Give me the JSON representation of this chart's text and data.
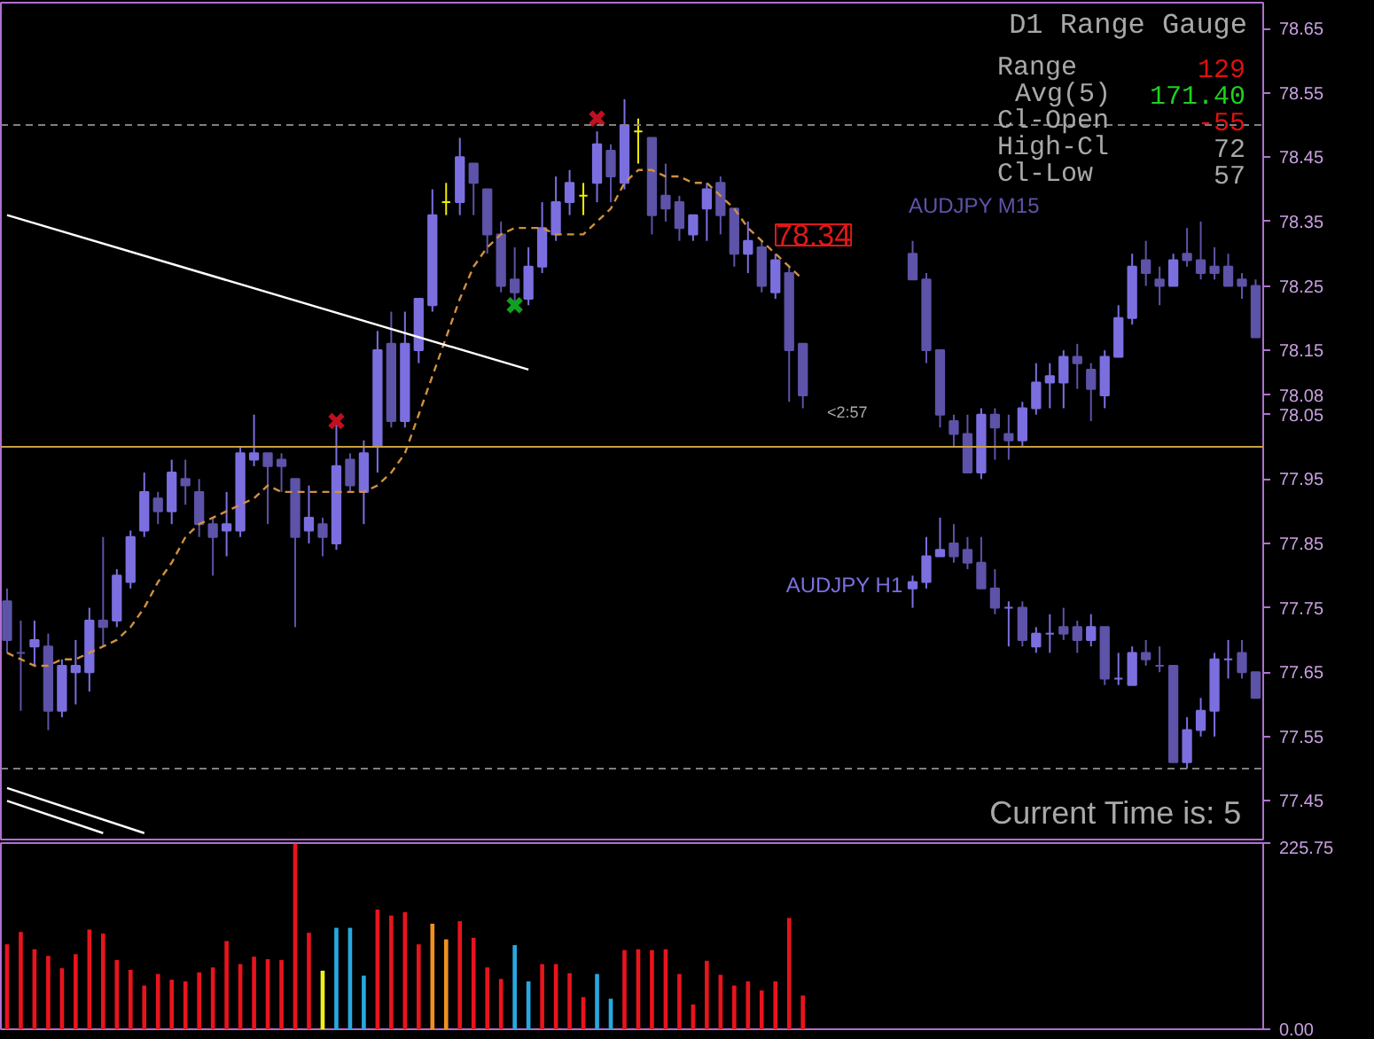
{
  "chart_data": [
    {
      "type": "candlestick",
      "ylim": [
        77.39,
        78.69
      ],
      "tick_labels": "y",
      "yticks": [
        78.65,
        78.55,
        78.45,
        78.35,
        78.25,
        78.15,
        78.08,
        78.05,
        77.95,
        77.85,
        77.75,
        77.65,
        77.55,
        77.45
      ],
      "categories": [
        null,
        null,
        null,
        null,
        null,
        null,
        null,
        null,
        null,
        null,
        null,
        null,
        null,
        null,
        null,
        null,
        null,
        null,
        null,
        null,
        null,
        null,
        null,
        null,
        null,
        null,
        null,
        null,
        null,
        null,
        null,
        null,
        null,
        null,
        null,
        null,
        null,
        null,
        null,
        null,
        null,
        null,
        null,
        null,
        null,
        null,
        null,
        null,
        null,
        null,
        null,
        null,
        null,
        null,
        null,
        null,
        null,
        null,
        null,
        null,
        null,
        null,
        null,
        null,
        null,
        null,
        null,
        null,
        null,
        null,
        null,
        null,
        null,
        null,
        null,
        null,
        null,
        null,
        null,
        null,
        null,
        null,
        null,
        null,
        null,
        null,
        null,
        null,
        null,
        null,
        null,
        null
      ],
      "ohlc": [
        [
          77.76,
          77.78,
          77.68,
          77.7
        ],
        [
          77.68,
          77.73,
          77.59,
          77.68
        ],
        [
          77.69,
          77.73,
          77.66,
          77.7
        ],
        [
          77.69,
          77.71,
          77.56,
          77.59
        ],
        [
          77.59,
          77.67,
          77.58,
          77.66
        ],
        [
          77.65,
          77.7,
          77.6,
          77.66
        ],
        [
          77.65,
          77.75,
          77.62,
          77.73
        ],
        [
          77.73,
          77.86,
          77.69,
          77.72
        ],
        [
          77.73,
          77.81,
          77.72,
          77.8
        ],
        [
          77.79,
          77.87,
          77.78,
          77.86
        ],
        [
          77.87,
          77.96,
          77.86,
          77.93
        ],
        [
          77.92,
          77.93,
          77.88,
          77.9
        ],
        [
          77.9,
          77.98,
          77.88,
          77.96
        ],
        [
          77.95,
          77.98,
          77.91,
          77.94
        ],
        [
          77.93,
          77.95,
          77.86,
          77.88
        ],
        [
          77.88,
          77.89,
          77.8,
          77.86
        ],
        [
          77.87,
          77.93,
          77.83,
          77.88
        ],
        [
          77.87,
          78.0,
          77.86,
          77.99
        ],
        [
          77.98,
          78.05,
          77.97,
          77.99
        ],
        [
          77.99,
          77.99,
          77.88,
          77.97
        ],
        [
          77.98,
          77.99,
          77.93,
          77.97
        ],
        [
          77.95,
          77.95,
          77.72,
          77.86
        ],
        [
          77.87,
          77.94,
          77.85,
          77.89
        ],
        [
          77.88,
          77.89,
          77.83,
          77.86
        ],
        [
          77.85,
          78.04,
          77.84,
          77.97
        ],
        [
          77.98,
          77.99,
          77.93,
          77.94
        ],
        [
          77.93,
          78.01,
          77.88,
          77.99
        ],
        [
          78.0,
          78.18,
          77.96,
          78.15
        ],
        [
          78.16,
          78.21,
          78.03,
          78.04
        ],
        [
          78.04,
          78.21,
          78.03,
          78.16
        ],
        [
          78.15,
          78.23,
          78.13,
          78.23
        ],
        [
          78.22,
          78.4,
          78.21,
          78.36
        ],
        [
          78.38,
          78.41,
          78.36,
          78.38
        ],
        [
          78.38,
          78.48,
          78.36,
          78.45
        ],
        [
          78.44,
          78.44,
          78.36,
          78.41
        ],
        [
          78.4,
          78.4,
          78.3,
          78.33
        ],
        [
          78.33,
          78.35,
          78.24,
          78.25
        ],
        [
          78.26,
          78.31,
          78.22,
          78.24
        ],
        [
          78.23,
          78.31,
          78.22,
          78.28
        ],
        [
          78.28,
          78.38,
          78.27,
          78.34
        ],
        [
          78.33,
          78.42,
          78.32,
          78.38
        ],
        [
          78.38,
          78.43,
          78.36,
          78.41
        ],
        [
          78.39,
          78.41,
          78.36,
          78.39
        ],
        [
          78.41,
          78.49,
          78.38,
          78.47
        ],
        [
          78.46,
          78.47,
          78.38,
          78.42
        ],
        [
          78.41,
          78.54,
          78.4,
          78.5
        ],
        [
          78.49,
          78.51,
          78.44,
          78.49
        ],
        [
          78.48,
          78.48,
          78.33,
          78.36
        ],
        [
          78.39,
          78.44,
          78.35,
          78.37
        ],
        [
          78.38,
          78.39,
          78.32,
          78.34
        ],
        [
          78.33,
          78.36,
          78.32,
          78.36
        ],
        [
          78.37,
          78.41,
          78.32,
          78.4
        ],
        [
          78.41,
          78.42,
          78.33,
          78.36
        ],
        [
          78.37,
          78.37,
          78.28,
          78.3
        ],
        [
          78.3,
          78.35,
          78.27,
          78.32
        ],
        [
          78.31,
          78.32,
          78.24,
          78.25
        ],
        [
          78.24,
          78.3,
          78.23,
          78.29
        ],
        [
          78.27,
          78.28,
          78.07,
          78.15
        ],
        [
          78.16,
          78.16,
          78.06,
          78.08
        ],
        null,
        null,
        null,
        null,
        null,
        null,
        null,
        null,
        null,
        null,
        null,
        null,
        null,
        null,
        null,
        null,
        null,
        null,
        null,
        null,
        null,
        null,
        null,
        null,
        null,
        null,
        null,
        null,
        null,
        null,
        null,
        null,
        null
      ],
      "colors": [
        "#5d53a8",
        "#5d53a8",
        "#7b6fe0",
        "#5d53a8",
        "#7b6fe0",
        "#7b6fe0",
        "#7b6fe0",
        "#5d53a8",
        "#7b6fe0",
        "#7b6fe0",
        "#7b6fe0",
        "#5d53a8",
        "#7b6fe0",
        "#5d53a8",
        "#5d53a8",
        "#5d53a8",
        "#7b6fe0",
        "#7b6fe0",
        "#7b6fe0",
        "#5d53a8",
        "#5d53a8",
        "#5d53a8",
        "#7b6fe0",
        "#5d53a8",
        "#7b6fe0",
        "#5d53a8",
        "#7b6fe0",
        "#7b6fe0",
        "#5d53a8",
        "#7b6fe0",
        "#7b6fe0",
        "#7b6fe0",
        "#f0f000",
        "#7b6fe0",
        "#5d53a8",
        "#5d53a8",
        "#5d53a8",
        "#5d53a8",
        "#7b6fe0",
        "#7b6fe0",
        "#7b6fe0",
        "#7b6fe0",
        "#f0f000",
        "#7b6fe0",
        "#5d53a8",
        "#7b6fe0",
        "#f0f000",
        "#5d53a8",
        "#5d53a8",
        "#5d53a8",
        "#7b6fe0",
        "#7b6fe0",
        "#5d53a8",
        "#5d53a8",
        "#7b6fe0",
        "#5d53a8",
        "#7b6fe0",
        "#5d53a8",
        "#5d53a8",
        null,
        null,
        null,
        null,
        null,
        null,
        null,
        null,
        null,
        null,
        null,
        null,
        null,
        null,
        null,
        null,
        null,
        null,
        null,
        null,
        null,
        null,
        null,
        null,
        null,
        null,
        null,
        null,
        null,
        null,
        null,
        null,
        null
      ],
      "series": [
        {
          "name": "AUDJPY M15",
          "type": "candlestick",
          "ohlc": [
            null,
            null,
            null,
            null,
            null,
            null,
            null,
            null,
            null,
            null,
            null,
            null,
            null,
            null,
            null,
            null,
            null,
            null,
            null,
            null,
            null,
            null,
            null,
            null,
            null,
            null,
            null,
            null,
            null,
            null,
            null,
            null,
            null,
            null,
            null,
            null,
            null,
            null,
            null,
            null,
            null,
            null,
            null,
            null,
            null,
            null,
            null,
            null,
            null,
            null,
            null,
            null,
            null,
            null,
            null,
            null,
            null,
            null,
            null,
            null,
            null,
            null,
            null,
            null,
            null,
            null,
            [
              78.3,
              78.32,
              78.26,
              78.26
            ],
            [
              78.26,
              78.27,
              78.13,
              78.15
            ],
            [
              78.15,
              78.15,
              78.03,
              78.05
            ],
            [
              78.04,
              78.05,
              78.0,
              78.02
            ],
            [
              78.02,
              78.05,
              77.96,
              77.96
            ],
            [
              77.96,
              78.06,
              77.95,
              78.05
            ],
            [
              78.05,
              78.06,
              77.98,
              78.03
            ],
            [
              78.02,
              78.05,
              77.98,
              78.01
            ],
            [
              78.01,
              78.07,
              78.0,
              78.06
            ],
            [
              78.06,
              78.13,
              78.05,
              78.1
            ],
            [
              78.1,
              78.13,
              78.06,
              78.11
            ],
            [
              78.1,
              78.15,
              78.06,
              78.14
            ],
            [
              78.14,
              78.16,
              78.09,
              78.13
            ],
            [
              78.12,
              78.13,
              78.04,
              78.09
            ],
            [
              78.08,
              78.15,
              78.06,
              78.14
            ],
            [
              78.14,
              78.22,
              78.14,
              78.2
            ],
            [
              78.2,
              78.3,
              78.19,
              78.28
            ],
            [
              78.29,
              78.32,
              78.25,
              78.27
            ],
            [
              78.26,
              78.28,
              78.22,
              78.25
            ],
            [
              78.25,
              78.3,
              78.25,
              78.29
            ],
            [
              78.3,
              78.34,
              78.28,
              78.29
            ],
            [
              78.29,
              78.35,
              78.26,
              78.27
            ],
            [
              78.28,
              78.31,
              78.26,
              78.27
            ],
            [
              78.28,
              78.3,
              78.25,
              78.25
            ],
            [
              78.26,
              78.27,
              78.23,
              78.25
            ],
            [
              78.25,
              78.26,
              78.17,
              78.17
            ]
          ],
          "colors": [
            null,
            null,
            null,
            null,
            null,
            null,
            null,
            null,
            null,
            null,
            null,
            null,
            null,
            null,
            null,
            null,
            null,
            null,
            null,
            null,
            null,
            null,
            null,
            null,
            null,
            null,
            null,
            null,
            null,
            null,
            null,
            null,
            null,
            null,
            null,
            null,
            null,
            null,
            null,
            null,
            null,
            null,
            null,
            null,
            null,
            null,
            null,
            null,
            null,
            null,
            null,
            null,
            null,
            null,
            null,
            null,
            null,
            null,
            null,
            null,
            null,
            null,
            null,
            null,
            null,
            null,
            "#5d53a8",
            "#5d53a8",
            "#5d53a8",
            "#5d53a8",
            "#5d53a8",
            "#7b6fe0",
            "#5d53a8",
            "#5d53a8",
            "#7b6fe0",
            "#7b6fe0",
            "#7b6fe0",
            "#7b6fe0",
            "#5d53a8",
            "#5d53a8",
            "#7b6fe0",
            "#7b6fe0",
            "#7b6fe0",
            "#5d53a8",
            "#5d53a8",
            "#7b6fe0",
            "#5d53a8",
            "#5d53a8",
            "#5d53a8",
            "#5d53a8",
            "#5d53a8",
            "#5d53a8"
          ]
        },
        {
          "name": "AUDJPY H1",
          "type": "candlestick",
          "ohlc": [
            null,
            null,
            null,
            null,
            null,
            null,
            null,
            null,
            null,
            null,
            null,
            null,
            null,
            null,
            null,
            null,
            null,
            null,
            null,
            null,
            null,
            null,
            null,
            null,
            null,
            null,
            null,
            null,
            null,
            null,
            null,
            null,
            null,
            null,
            null,
            null,
            null,
            null,
            null,
            null,
            null,
            null,
            null,
            null,
            null,
            null,
            null,
            null,
            null,
            null,
            null,
            null,
            null,
            null,
            null,
            null,
            null,
            null,
            null,
            null,
            null,
            null,
            null,
            null,
            null,
            null,
            [
              77.78,
              77.8,
              77.75,
              77.79
            ],
            [
              77.79,
              77.86,
              77.78,
              77.83
            ],
            [
              77.83,
              77.89,
              77.83,
              77.84
            ],
            [
              77.85,
              77.88,
              77.82,
              77.83
            ],
            [
              77.84,
              77.86,
              77.81,
              77.82
            ],
            [
              77.82,
              77.86,
              77.78,
              77.78
            ],
            [
              77.78,
              77.81,
              77.74,
              77.75
            ],
            [
              77.75,
              77.76,
              77.69,
              77.75
            ],
            [
              77.75,
              77.76,
              77.69,
              77.7
            ],
            [
              77.69,
              77.72,
              77.68,
              77.71
            ],
            [
              77.71,
              77.74,
              77.68,
              77.71
            ],
            [
              77.72,
              77.75,
              77.7,
              77.71
            ],
            [
              77.72,
              77.73,
              77.68,
              77.7
            ],
            [
              77.7,
              77.74,
              77.69,
              77.72
            ],
            [
              77.72,
              77.72,
              77.63,
              77.64
            ],
            [
              77.64,
              77.68,
              77.63,
              77.64
            ],
            [
              77.63,
              77.69,
              77.63,
              77.68
            ],
            [
              77.68,
              77.7,
              77.66,
              77.67
            ],
            [
              77.66,
              77.69,
              77.65,
              77.66
            ],
            [
              77.66,
              77.66,
              77.51,
              77.51
            ],
            [
              77.51,
              77.58,
              77.5,
              77.56
            ],
            [
              77.56,
              77.61,
              77.55,
              77.59
            ],
            [
              77.59,
              77.68,
              77.55,
              77.67
            ],
            [
              77.67,
              77.7,
              77.64,
              77.67
            ],
            [
              77.68,
              77.7,
              77.64,
              77.65
            ],
            [
              77.65,
              77.65,
              77.61,
              77.61
            ]
          ],
          "colors": [
            null,
            null,
            null,
            null,
            null,
            null,
            null,
            null,
            null,
            null,
            null,
            null,
            null,
            null,
            null,
            null,
            null,
            null,
            null,
            null,
            null,
            null,
            null,
            null,
            null,
            null,
            null,
            null,
            null,
            null,
            null,
            null,
            null,
            null,
            null,
            null,
            null,
            null,
            null,
            null,
            null,
            null,
            null,
            null,
            null,
            null,
            null,
            null,
            null,
            null,
            null,
            null,
            null,
            null,
            null,
            null,
            null,
            null,
            null,
            null,
            null,
            null,
            null,
            null,
            null,
            null,
            "#7b6fe0",
            "#7b6fe0",
            "#7b6fe0",
            "#5d53a8",
            "#5d53a8",
            "#5d53a8",
            "#5d53a8",
            "#7b6fe0",
            "#5d53a8",
            "#7b6fe0",
            "#7b6fe0",
            "#5d53a8",
            "#5d53a8",
            "#7b6fe0",
            "#5d53a8",
            "#7b6fe0",
            "#7b6fe0",
            "#5d53a8",
            "#5d53a8",
            "#5d53a8",
            "#7b6fe0",
            "#7b6fe0",
            "#7b6fe0",
            "#7b6fe0",
            "#5d53a8",
            "#5d53a8"
          ]
        },
        {
          "type": "line",
          "color": "#d09040",
          "line_style": "dashed",
          "values": [
            77.68,
            77.67,
            77.66,
            77.66,
            77.67,
            77.67,
            77.68,
            77.69,
            77.7,
            77.72,
            77.75,
            77.79,
            77.82,
            77.86,
            77.88,
            77.89,
            77.9,
            77.91,
            77.92,
            77.94,
            77.93,
            77.93,
            77.93,
            77.93,
            77.93,
            77.93,
            77.93,
            77.94,
            77.96,
            77.99,
            78.05,
            78.11,
            78.17,
            78.23,
            78.28,
            78.31,
            78.33,
            78.34,
            78.34,
            78.34,
            78.33,
            78.33,
            78.33,
            78.35,
            78.37,
            78.41,
            78.43,
            78.43,
            78.42,
            78.42,
            78.41,
            78.41,
            78.39,
            78.37,
            78.34,
            78.32,
            78.3,
            78.28,
            78.26,
            null,
            null,
            null,
            null,
            null,
            null,
            null,
            null,
            null,
            null,
            null,
            null,
            null,
            null,
            null,
            null,
            null,
            null,
            null,
            null,
            null,
            null,
            null,
            null,
            null,
            null,
            null,
            null,
            null,
            null,
            null,
            null,
            null
          ]
        },
        {
          "type": "line",
          "color": "#ffffff",
          "line_style": "solid",
          "values": [
            78.36,
            null,
            null,
            null,
            null,
            null,
            null,
            null,
            null,
            null,
            null,
            null,
            null,
            null,
            null,
            null,
            null,
            null,
            null,
            null,
            null,
            null,
            null,
            null,
            null,
            null,
            null,
            null,
            null,
            null,
            null,
            null,
            null,
            null,
            null,
            null,
            null,
            null,
            78.12,
            null,
            null,
            null,
            null,
            null,
            null,
            null,
            null,
            null,
            null,
            null,
            null,
            null,
            null,
            null,
            null,
            null,
            null,
            null,
            null,
            null,
            null,
            null,
            null,
            null,
            null,
            null,
            null,
            null,
            null,
            null,
            null,
            null,
            null,
            null,
            null,
            null,
            null,
            null,
            null,
            null,
            null,
            null,
            null,
            null,
            null,
            null,
            null,
            null,
            null,
            null,
            null,
            null
          ]
        },
        {
          "type": "line",
          "color": "#ffffff",
          "line_style": "solid",
          "values": [
            77.47,
            null,
            null,
            null,
            null,
            null,
            null,
            null,
            null,
            null,
            77.4,
            null,
            null,
            null,
            null,
            null,
            null,
            null,
            null,
            null,
            null,
            null,
            null,
            null,
            null,
            null,
            null,
            null,
            null,
            null,
            null,
            null,
            null,
            null,
            null,
            null,
            null,
            null,
            null,
            null,
            null,
            null,
            null,
            null,
            null,
            null,
            null,
            null,
            null,
            null,
            null,
            null,
            null,
            null,
            null,
            null,
            null,
            null,
            null,
            null,
            null,
            null,
            null,
            null,
            null,
            null,
            null,
            null,
            null,
            null,
            null,
            null,
            null,
            null,
            null,
            null,
            null,
            null,
            null,
            null,
            null,
            null,
            null,
            null,
            null,
            null,
            null,
            null,
            null,
            null,
            null,
            null
          ]
        },
        {
          "type": "line",
          "color": "#ffffff",
          "line_style": "solid",
          "values": [
            77.45,
            null,
            null,
            null,
            null,
            null,
            null,
            77.4,
            null,
            null,
            null,
            null,
            null,
            null,
            null,
            null,
            null,
            null,
            null,
            null,
            null,
            null,
            null,
            null,
            null,
            null,
            null,
            null,
            null,
            null,
            null,
            null,
            null,
            null,
            null,
            null,
            null,
            null,
            null,
            null,
            null,
            null,
            null,
            null,
            null,
            null,
            null,
            null,
            null,
            null,
            null,
            null,
            null,
            null,
            null,
            null,
            null,
            null,
            null,
            null,
            null,
            null,
            null,
            null,
            null,
            null,
            null,
            null,
            null,
            null,
            null,
            null,
            null,
            null,
            null,
            null,
            null,
            null,
            null,
            null,
            null,
            null,
            null,
            null,
            null,
            null,
            null,
            null,
            null,
            null,
            null,
            null
          ]
        },
        {
          "type": "scatter",
          "marker": "cross",
          "color": "#c01020",
          "values": [
            null,
            null,
            null,
            null,
            null,
            null,
            null,
            null,
            null,
            null,
            null,
            null,
            null,
            null,
            null,
            null,
            null,
            null,
            null,
            null,
            null,
            null,
            null,
            null,
            78.04,
            null,
            null,
            null,
            null,
            null,
            null,
            null,
            null,
            null,
            null,
            null,
            null,
            null,
            null,
            null,
            null,
            null,
            null,
            78.51,
            null,
            null,
            null,
            null,
            null,
            null,
            null,
            null,
            null,
            null,
            null,
            null,
            null,
            null,
            null,
            null,
            null,
            null,
            null,
            null,
            null,
            null,
            null,
            null,
            null,
            null,
            null,
            null,
            null,
            null,
            null,
            null,
            null,
            null,
            null,
            null,
            null,
            null,
            null,
            null,
            null,
            null,
            null,
            null,
            null,
            null,
            null,
            null
          ]
        },
        {
          "type": "scatter",
          "marker": "cross",
          "color": "#10a020",
          "values": [
            null,
            null,
            null,
            null,
            null,
            null,
            null,
            null,
            null,
            null,
            null,
            null,
            null,
            null,
            null,
            null,
            null,
            null,
            null,
            null,
            null,
            null,
            null,
            null,
            null,
            null,
            null,
            null,
            null,
            null,
            null,
            null,
            null,
            null,
            null,
            null,
            null,
            78.22,
            null,
            null,
            null,
            null,
            null,
            null,
            null,
            null,
            null,
            null,
            null,
            null,
            null,
            null,
            null,
            null,
            null,
            null,
            null,
            null,
            null,
            null,
            null,
            null,
            null,
            null,
            null,
            null,
            null,
            null,
            null,
            null,
            null,
            null,
            null,
            null,
            null,
            null,
            null,
            null,
            null,
            null,
            null,
            null,
            null,
            null,
            null,
            null,
            null,
            null,
            null,
            null,
            null,
            null
          ]
        }
      ],
      "ref_lines": [
        {
          "axis": "y",
          "value": 78.5,
          "color": "#808080",
          "line_style": "dashed"
        },
        {
          "axis": "y",
          "value": 78.0,
          "color": "#c8a040",
          "line_style": "solid"
        },
        {
          "axis": "y",
          "value": 77.5,
          "color": "#808080",
          "line_style": "dashed"
        }
      ],
      "annotations": [
        "D1 Range Gauge",
        "Range",
        "129",
        "Avg(5)",
        "171.40",
        "Cl-Open",
        "-55",
        "High-Cl",
        "72",
        "Cl-Low",
        "57",
        "Current Time is: 5",
        "<2:57",
        "78.34"
      ]
    },
    {
      "type": "bar",
      "ylim": [
        0,
        225.75
      ],
      "tick_labels": "y",
      "yticks": [
        225.75,
        {
          "value": 0,
          "label": "0.00"
        }
      ],
      "categories": [
        null,
        null,
        null,
        null,
        null,
        null,
        null,
        null,
        null,
        null,
        null,
        null,
        null,
        null,
        null,
        null,
        null,
        null,
        null,
        null,
        null,
        null,
        null,
        null,
        null,
        null,
        null,
        null,
        null,
        null,
        null,
        null,
        null,
        null,
        null,
        null,
        null,
        null,
        null,
        null,
        null,
        null,
        null,
        null,
        null,
        null,
        null,
        null,
        null,
        null,
        null,
        null,
        null,
        null,
        null,
        null,
        null,
        null,
        null,
        null,
        null,
        null,
        null,
        null,
        null,
        null,
        null,
        null,
        null,
        null,
        null,
        null,
        null,
        null,
        null,
        null,
        null,
        null,
        null,
        null,
        null,
        null,
        null,
        null,
        null,
        null,
        null,
        null,
        null,
        null,
        null,
        null
      ],
      "values": [
        103,
        118,
        97,
        89,
        74,
        91,
        121,
        116,
        84,
        72,
        53,
        67,
        60,
        58,
        69,
        75,
        107,
        79,
        88,
        85,
        84,
        225,
        117,
        71,
        123,
        123,
        65,
        145,
        138,
        142,
        103,
        128,
        109,
        131,
        111,
        75,
        61,
        102,
        58,
        79,
        79,
        68,
        39,
        67,
        37,
        96,
        97,
        96,
        97,
        67,
        30,
        83,
        66,
        53,
        58,
        47,
        58,
        135,
        41,
        null,
        null,
        null,
        null,
        null,
        null,
        null,
        null,
        null,
        null,
        null,
        null,
        null,
        null,
        null,
        null,
        null,
        null,
        null,
        null,
        null,
        null,
        null,
        null,
        null,
        null,
        null,
        null,
        null,
        null,
        null,
        null,
        null
      ],
      "colors": [
        "#e8141c",
        "#e8141c",
        "#e8141c",
        "#e8141c",
        "#e8141c",
        "#e8141c",
        "#e8141c",
        "#e8141c",
        "#e8141c",
        "#e8141c",
        "#e8141c",
        "#e8141c",
        "#e8141c",
        "#e8141c",
        "#e8141c",
        "#e8141c",
        "#e8141c",
        "#e8141c",
        "#e8141c",
        "#e8141c",
        "#e8141c",
        "#e8141c",
        "#e8141c",
        "#f0f020",
        "#28a8e0",
        "#28a8e0",
        "#28a8e0",
        "#e8141c",
        "#e8141c",
        "#e8141c",
        "#e8141c",
        "#f09020",
        "#f09020",
        "#e8141c",
        "#e8141c",
        "#e8141c",
        "#e8141c",
        "#28a8e0",
        "#28a8e0",
        "#e8141c",
        "#e8141c",
        "#e8141c",
        "#e8141c",
        "#28a8e0",
        "#28a8e0",
        "#e8141c",
        "#e8141c",
        "#e8141c",
        "#e8141c",
        "#e8141c",
        "#e8141c",
        "#e8141c",
        "#e8141c",
        "#e8141c",
        "#e8141c",
        "#e8141c",
        "#e8141c",
        "#e8141c",
        "#e8141c",
        null,
        null,
        null,
        null,
        null,
        null,
        null,
        null,
        null,
        null,
        null,
        null,
        null,
        null,
        null,
        null,
        null,
        null,
        null,
        null,
        null,
        null,
        null,
        null,
        null,
        null,
        null,
        null,
        null,
        null,
        null,
        null,
        null
      ]
    }
  ]
}
